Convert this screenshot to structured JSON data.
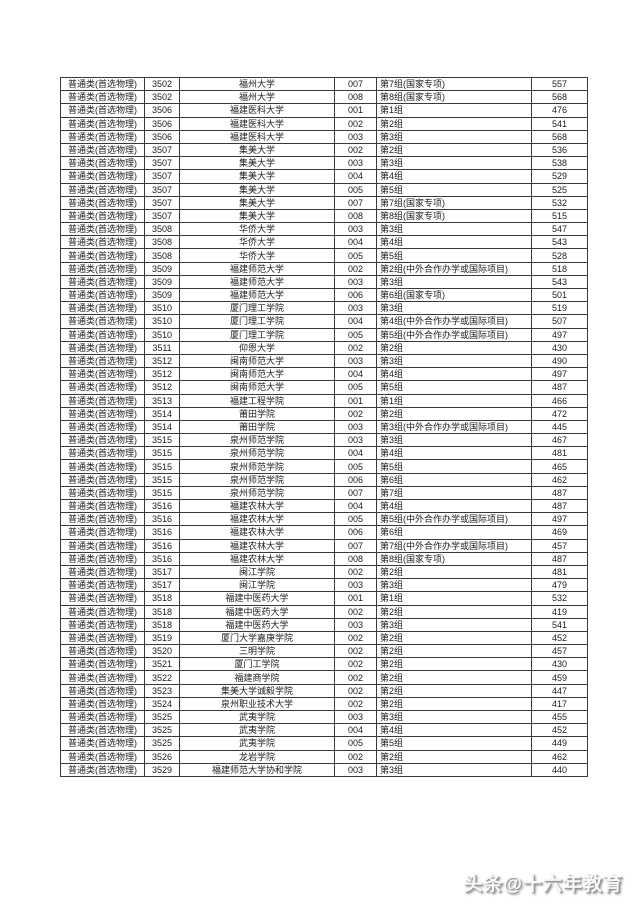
{
  "watermark": {
    "text": "头条@十六年教育"
  },
  "table": {
    "field_names": [
      "category",
      "code",
      "university",
      "group_code",
      "group_name",
      "score"
    ],
    "rows": [
      [
        "普通类(首选物理)",
        "3502",
        "福州大学",
        "007",
        "第7组(国家专项)",
        "557"
      ],
      [
        "普通类(首选物理)",
        "3502",
        "福州大学",
        "008",
        "第8组(国家专项)",
        "568"
      ],
      [
        "普通类(首选物理)",
        "3506",
        "福建医科大学",
        "001",
        "第1组",
        "476"
      ],
      [
        "普通类(首选物理)",
        "3506",
        "福建医科大学",
        "002",
        "第2组",
        "541"
      ],
      [
        "普通类(首选物理)",
        "3506",
        "福建医科大学",
        "003",
        "第3组",
        "568"
      ],
      [
        "普通类(首选物理)",
        "3507",
        "集美大学",
        "002",
        "第2组",
        "536"
      ],
      [
        "普通类(首选物理)",
        "3507",
        "集美大学",
        "003",
        "第3组",
        "538"
      ],
      [
        "普通类(首选物理)",
        "3507",
        "集美大学",
        "004",
        "第4组",
        "529"
      ],
      [
        "普通类(首选物理)",
        "3507",
        "集美大学",
        "005",
        "第5组",
        "525"
      ],
      [
        "普通类(首选物理)",
        "3507",
        "集美大学",
        "007",
        "第7组(国家专项)",
        "532"
      ],
      [
        "普通类(首选物理)",
        "3507",
        "集美大学",
        "008",
        "第8组(国家专项)",
        "515"
      ],
      [
        "普通类(首选物理)",
        "3508",
        "华侨大学",
        "003",
        "第3组",
        "547"
      ],
      [
        "普通类(首选物理)",
        "3508",
        "华侨大学",
        "004",
        "第4组",
        "543"
      ],
      [
        "普通类(首选物理)",
        "3508",
        "华侨大学",
        "005",
        "第5组",
        "528"
      ],
      [
        "普通类(首选物理)",
        "3509",
        "福建师范大学",
        "002",
        "第2组(中外合作办学或国际项目)",
        "518"
      ],
      [
        "普通类(首选物理)",
        "3509",
        "福建师范大学",
        "003",
        "第3组",
        "543"
      ],
      [
        "普通类(首选物理)",
        "3509",
        "福建师范大学",
        "006",
        "第6组(国家专项)",
        "501"
      ],
      [
        "普通类(首选物理)",
        "3510",
        "厦门理工学院",
        "003",
        "第3组",
        "519"
      ],
      [
        "普通类(首选物理)",
        "3510",
        "厦门理工学院",
        "004",
        "第4组(中外合作办学或国际项目)",
        "507"
      ],
      [
        "普通类(首选物理)",
        "3510",
        "厦门理工学院",
        "005",
        "第5组(中外合作办学或国际项目)",
        "497"
      ],
      [
        "普通类(首选物理)",
        "3511",
        "仰恩大学",
        "002",
        "第2组",
        "430"
      ],
      [
        "普通类(首选物理)",
        "3512",
        "闽南师范大学",
        "003",
        "第3组",
        "490"
      ],
      [
        "普通类(首选物理)",
        "3512",
        "闽南师范大学",
        "004",
        "第4组",
        "497"
      ],
      [
        "普通类(首选物理)",
        "3512",
        "闽南师范大学",
        "005",
        "第5组",
        "487"
      ],
      [
        "普通类(首选物理)",
        "3513",
        "福建工程学院",
        "001",
        "第1组",
        "466"
      ],
      [
        "普通类(首选物理)",
        "3514",
        "莆田学院",
        "002",
        "第2组",
        "472"
      ],
      [
        "普通类(首选物理)",
        "3514",
        "莆田学院",
        "003",
        "第3组(中外合作办学或国际项目)",
        "445"
      ],
      [
        "普通类(首选物理)",
        "3515",
        "泉州师范学院",
        "003",
        "第3组",
        "467"
      ],
      [
        "普通类(首选物理)",
        "3515",
        "泉州师范学院",
        "004",
        "第4组",
        "481"
      ],
      [
        "普通类(首选物理)",
        "3515",
        "泉州师范学院",
        "005",
        "第5组",
        "465"
      ],
      [
        "普通类(首选物理)",
        "3515",
        "泉州师范学院",
        "006",
        "第6组",
        "462"
      ],
      [
        "普通类(首选物理)",
        "3515",
        "泉州师范学院",
        "007",
        "第7组",
        "487"
      ],
      [
        "普通类(首选物理)",
        "3516",
        "福建农林大学",
        "004",
        "第4组",
        "487"
      ],
      [
        "普通类(首选物理)",
        "3516",
        "福建农林大学",
        "005",
        "第5组(中外合作办学或国际项目)",
        "497"
      ],
      [
        "普通类(首选物理)",
        "3516",
        "福建农林大学",
        "006",
        "第6组",
        "469"
      ],
      [
        "普通类(首选物理)",
        "3516",
        "福建农林大学",
        "007",
        "第7组(中外合作办学或国际项目)",
        "457"
      ],
      [
        "普通类(首选物理)",
        "3516",
        "福建农林大学",
        "008",
        "第8组(国家专项)",
        "487"
      ],
      [
        "普通类(首选物理)",
        "3517",
        "闽江学院",
        "002",
        "第2组",
        "481"
      ],
      [
        "普通类(首选物理)",
        "3517",
        "闽江学院",
        "003",
        "第3组",
        "479"
      ],
      [
        "普通类(首选物理)",
        "3518",
        "福建中医药大学",
        "001",
        "第1组",
        "532"
      ],
      [
        "普通类(首选物理)",
        "3518",
        "福建中医药大学",
        "002",
        "第2组",
        "419"
      ],
      [
        "普通类(首选物理)",
        "3518",
        "福建中医药大学",
        "003",
        "第3组",
        "541"
      ],
      [
        "普通类(首选物理)",
        "3519",
        "厦门大学嘉庚学院",
        "002",
        "第2组",
        "452"
      ],
      [
        "普通类(首选物理)",
        "3520",
        "三明学院",
        "002",
        "第2组",
        "457"
      ],
      [
        "普通类(首选物理)",
        "3521",
        "厦门工学院",
        "002",
        "第2组",
        "430"
      ],
      [
        "普通类(首选物理)",
        "3522",
        "福建商学院",
        "002",
        "第2组",
        "459"
      ],
      [
        "普通类(首选物理)",
        "3523",
        "集美大学诚毅学院",
        "002",
        "第2组",
        "447"
      ],
      [
        "普通类(首选物理)",
        "3524",
        "泉州职业技术大学",
        "002",
        "第2组",
        "417"
      ],
      [
        "普通类(首选物理)",
        "3525",
        "武夷学院",
        "003",
        "第3组",
        "455"
      ],
      [
        "普通类(首选物理)",
        "3525",
        "武夷学院",
        "004",
        "第4组",
        "452"
      ],
      [
        "普通类(首选物理)",
        "3525",
        "武夷学院",
        "005",
        "第5组",
        "449"
      ],
      [
        "普通类(首选物理)",
        "3526",
        "龙岩学院",
        "002",
        "第2组",
        "462"
      ],
      [
        "普通类(首选物理)",
        "3529",
        "福建师范大学协和学院",
        "003",
        "第3组",
        "440"
      ]
    ]
  },
  "colors": {
    "page_background": "#ffffff",
    "table_border": "#3a3a3a",
    "cell_text": "#1c1c1c",
    "watermark_shadow": "#8a8a8a"
  }
}
